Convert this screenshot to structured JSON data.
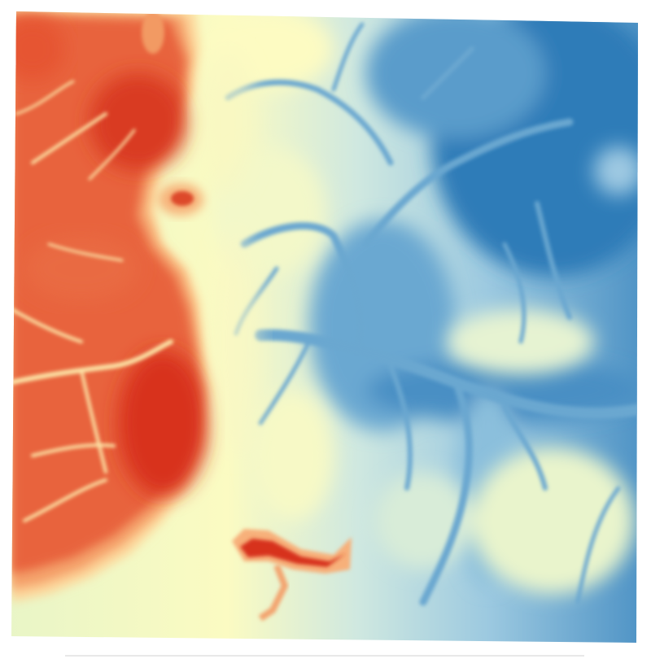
{
  "map": {
    "kind": "elevation-raster",
    "color_ramp": [
      "#d7191c",
      "#f07a4a",
      "#fdae61",
      "#fee8a8",
      "#ffffbf",
      "#e3f3c9",
      "#abd9e9",
      "#74add1",
      "#2c7bb6"
    ],
    "background": "#ffffff",
    "frame_line_color": "#d0d0d0"
  }
}
